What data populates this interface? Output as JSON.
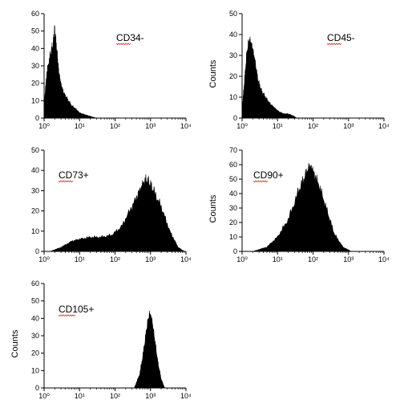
{
  "chart_data": [
    {
      "type": "area",
      "marker": "CD34-",
      "ylabel": "",
      "ylim": [
        0,
        60
      ],
      "yticks": [
        "0",
        "10",
        "20",
        "30",
        "40",
        "50",
        "60"
      ],
      "xscale": "log",
      "xlim": [
        1,
        10000
      ],
      "xticks": [
        "10⁰",
        "10¹",
        "10²",
        "10³",
        "10⁴"
      ],
      "x": [
        1.0,
        1.2,
        1.5,
        1.8,
        2.0,
        2.3,
        2.6,
        3.0,
        3.6,
        4.5,
        6.0,
        8.0,
        10,
        14,
        20,
        30
      ],
      "y": [
        8,
        26,
        36,
        42,
        50,
        38,
        26,
        19,
        14,
        11,
        7,
        5,
        3,
        2,
        1,
        0
      ]
    },
    {
      "type": "area",
      "marker": "CD45-",
      "ylabel": "Counts",
      "ylim": [
        0,
        50
      ],
      "yticks": [
        "0",
        "10",
        "20",
        "30",
        "40",
        "50"
      ],
      "xscale": "log",
      "xlim": [
        1,
        10000
      ],
      "xticks": [
        "10⁰",
        "10¹",
        "10²",
        "10³",
        "10⁴"
      ],
      "x": [
        1.0,
        1.15,
        1.35,
        1.6,
        1.9,
        2.3,
        2.8,
        3.5,
        4.5,
        6.0,
        8.0,
        11,
        15,
        20,
        28,
        35
      ],
      "y": [
        4,
        16,
        30,
        37,
        34,
        27,
        18,
        13,
        10,
        7,
        5,
        3,
        2,
        2,
        1,
        0
      ]
    },
    {
      "type": "area",
      "marker": "CD73+",
      "ylabel": "",
      "ylim": [
        0,
        50
      ],
      "yticks": [
        "0",
        "10",
        "20",
        "30",
        "40",
        "50"
      ],
      "xscale": "log",
      "xlim": [
        1,
        10000
      ],
      "xticks": [
        "10⁰",
        "10¹",
        "10²",
        "10³",
        "10⁴"
      ],
      "x": [
        1.5,
        3,
        6,
        10,
        20,
        40,
        80,
        150,
        300,
        500,
        700,
        900,
        1200,
        2000,
        3500,
        6000,
        9000
      ],
      "y": [
        0,
        2,
        5,
        6,
        7,
        7,
        8,
        12,
        22,
        30,
        35,
        34,
        30,
        22,
        10,
        2,
        0
      ]
    },
    {
      "type": "area",
      "marker": "CD90+",
      "ylabel": "Counts",
      "ylim": [
        0,
        70
      ],
      "yticks": [
        "0",
        "10",
        "20",
        "30",
        "40",
        "50",
        "60",
        "70"
      ],
      "xscale": "log",
      "xlim": [
        1,
        10000
      ],
      "xticks": [
        "10⁰",
        "10¹",
        "10²",
        "10³",
        "10⁴"
      ],
      "x": [
        2,
        5,
        10,
        20,
        40,
        60,
        80,
        100,
        150,
        250,
        400,
        700,
        1200
      ],
      "y": [
        0,
        3,
        10,
        22,
        42,
        52,
        58,
        55,
        45,
        28,
        12,
        3,
        0
      ]
    },
    {
      "type": "area",
      "marker": "CD105+",
      "ylabel": "Counts",
      "ylim": [
        0,
        60
      ],
      "yticks": [
        "0",
        "10",
        "20",
        "30",
        "40",
        "50",
        "60"
      ],
      "xscale": "log",
      "xlim": [
        1,
        10000
      ],
      "xticks": [
        "10⁰",
        "10¹",
        "10²",
        "10³",
        "10⁴"
      ],
      "x": [
        350,
        500,
        650,
        800,
        950,
        1100,
        1300,
        1600,
        2000,
        2500
      ],
      "y": [
        0,
        8,
        22,
        35,
        42,
        38,
        28,
        15,
        5,
        0
      ]
    }
  ]
}
